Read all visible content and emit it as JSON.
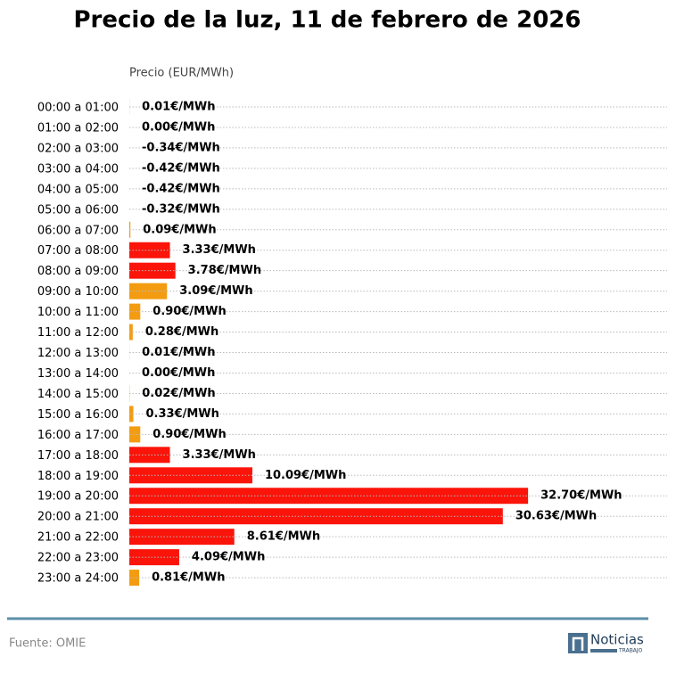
{
  "chart_data": {
    "type": "hbar",
    "title": "Precio de la luz, 11 de febrero de 2026",
    "x_label": "Precio (EUR/MWh)",
    "categories": [
      "00:00 a 01:00",
      "01:00 a 02:00",
      "02:00 a 03:00",
      "03:00 a 04:00",
      "04:00 a 05:00",
      "05:00 a 06:00",
      "06:00 a 07:00",
      "07:00 a 08:00",
      "08:00 a 09:00",
      "09:00 a 10:00",
      "10:00 a 11:00",
      "11:00 a 12:00",
      "12:00 a 13:00",
      "13:00 a 14:00",
      "14:00 a 15:00",
      "15:00 a 16:00",
      "16:00 a 17:00",
      "17:00 a 18:00",
      "18:00 a 19:00",
      "19:00 a 20:00",
      "20:00 a 21:00",
      "21:00 a 22:00",
      "22:00 a 23:00",
      "23:00 a 24:00"
    ],
    "values": [
      0.01,
      0.0,
      -0.34,
      -0.42,
      -0.42,
      -0.32,
      0.09,
      3.33,
      3.78,
      3.09,
      0.9,
      0.28,
      0.01,
      0.0,
      0.02,
      0.33,
      0.9,
      3.33,
      10.09,
      32.7,
      30.63,
      8.61,
      4.09,
      0.81
    ],
    "value_labels": [
      "0.01€/MWh",
      "0.00€/MWh",
      "-0.34€/MWh",
      "-0.42€/MWh",
      "-0.42€/MWh",
      "-0.32€/MWh",
      "0.09€/MWh",
      "3.33€/MWh",
      "3.78€/MWh",
      "3.09€/MWh",
      "0.90€/MWh",
      "0.28€/MWh",
      "0.01€/MWh",
      "0.00€/MWh",
      "0.02€/MWh",
      "0.33€/MWh",
      "0.90€/MWh",
      "3.33€/MWh",
      "10.09€/MWh",
      "32.70€/MWh",
      "30.63€/MWh",
      "8.61€/MWh",
      "4.09€/MWh",
      "0.81€/MWh"
    ],
    "colors": [
      "#f39c12",
      "#f39c12",
      "#2e9e3e",
      "#2e9e3e",
      "#2e9e3e",
      "#2e9e3e",
      "#f39c12",
      "#fa140a",
      "#fa140a",
      "#f39c12",
      "#f39c12",
      "#f39c12",
      "#f39c12",
      "#f39c12",
      "#f39c12",
      "#f39c12",
      "#f39c12",
      "#fa140a",
      "#fa140a",
      "#fa140a",
      "#fa140a",
      "#fa140a",
      "#fa140a",
      "#f39c12"
    ],
    "xlim": [
      0,
      44.1
    ],
    "grid": true
  },
  "footer": {
    "source": "Fuente: OMIE",
    "logo": "Noticias",
    "logo_sub": "TRABAJO"
  }
}
